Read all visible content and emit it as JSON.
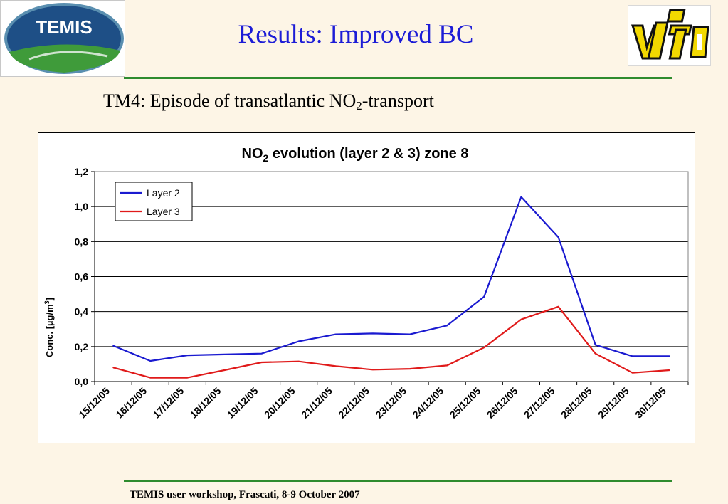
{
  "slide": {
    "title": "Results: Improved BC",
    "subtitle_main": "TM4: Episode of transatlantic NO",
    "subtitle_sub": "2",
    "subtitle_end": "-transport",
    "footer": "TEMIS user workshop, Frascati, 8-9 October 2007"
  },
  "logos": {
    "temis_text": "TEMIS"
  },
  "colors": {
    "title": "#1c1cd6",
    "rule": "#2e8b2e",
    "background": "#fdf5e6"
  },
  "chart_data": {
    "type": "line",
    "title_main": "NO",
    "title_sub": "2",
    "title_end": " evolution (layer 2 & 3) zone 8",
    "ylabel_main": "Conc. [µg/m",
    "ylabel_sup": "3",
    "ylabel_end": "]",
    "xlabel": "",
    "ylim": [
      0,
      1.2
    ],
    "yticks": [
      "0,0",
      "0,2",
      "0,4",
      "0,6",
      "0,8",
      "1,0",
      "1,2"
    ],
    "categories": [
      "15/12/05",
      "16/12/05",
      "17/12/05",
      "18/12/05",
      "19/12/05",
      "20/12/05",
      "21/12/05",
      "22/12/05",
      "23/12/05",
      "24/12/05",
      "25/12/05",
      "26/12/05",
      "27/12/05",
      "28/12/05",
      "29/12/05",
      "30/12/05"
    ],
    "grid": true,
    "legend_position": "top-left",
    "series": [
      {
        "name": "Layer 2",
        "color": "#1a1ad0",
        "values": [
          0.205,
          0.118,
          0.15,
          0.155,
          0.16,
          0.23,
          0.27,
          0.275,
          0.27,
          0.32,
          0.485,
          1.055,
          0.825,
          0.21,
          0.145,
          0.145
        ]
      },
      {
        "name": "Layer 3",
        "color": "#e01a1a",
        "values": [
          0.08,
          0.022,
          0.022,
          0.065,
          0.11,
          0.115,
          0.088,
          0.068,
          0.073,
          0.092,
          0.195,
          0.355,
          0.428,
          0.16,
          0.05,
          0.065
        ]
      }
    ]
  }
}
